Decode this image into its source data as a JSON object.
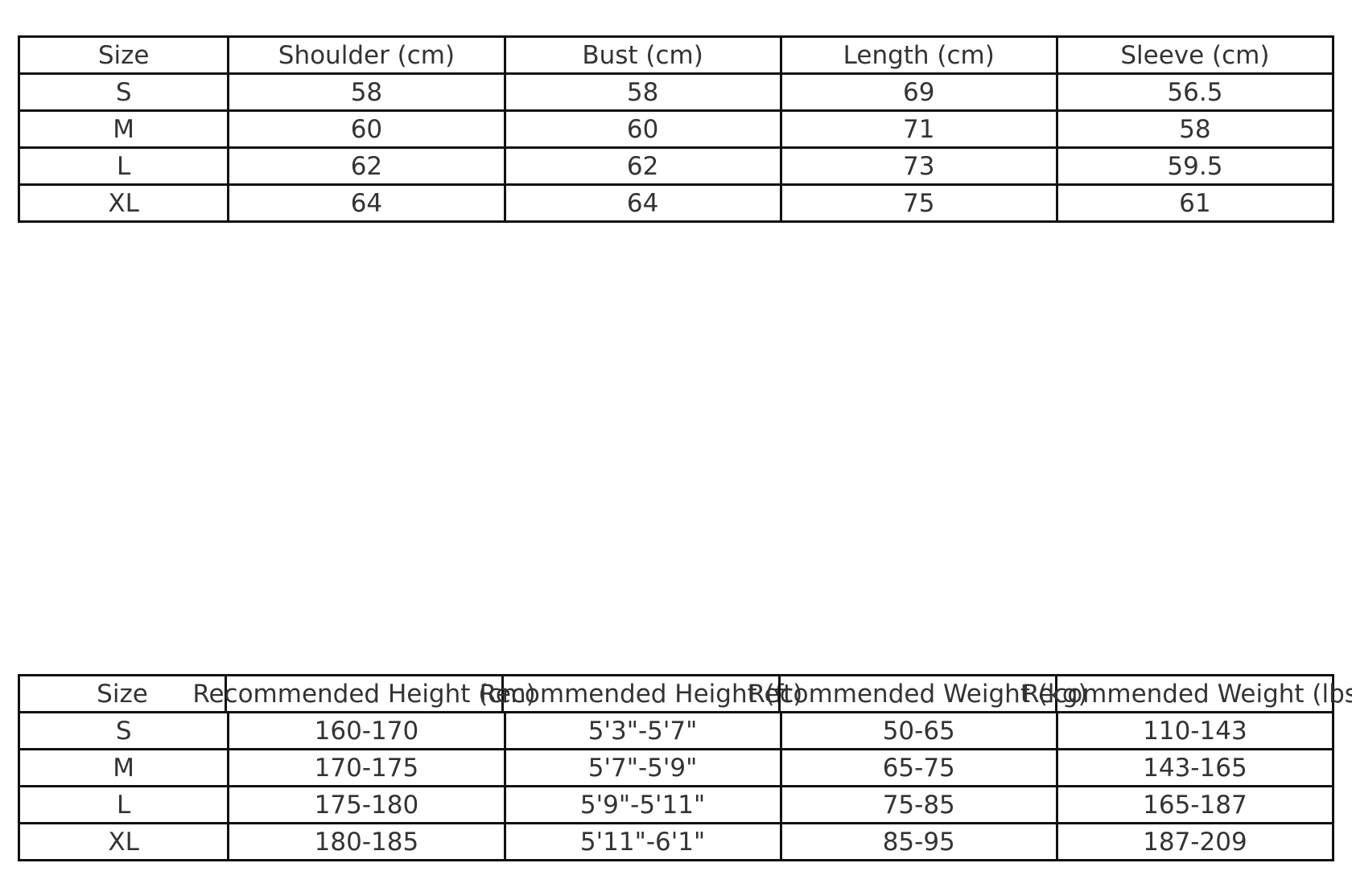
{
  "measurements_table": {
    "headers": [
      "Size",
      "Shoulder (cm)",
      "Bust (cm)",
      "Length (cm)",
      "Sleeve (cm)"
    ],
    "rows": [
      [
        "S",
        "58",
        "58",
        "69",
        "56.5"
      ],
      [
        "M",
        "60",
        "60",
        "71",
        "58"
      ],
      [
        "L",
        "62",
        "62",
        "73",
        "59.5"
      ],
      [
        "XL",
        "64",
        "64",
        "75",
        "61"
      ]
    ]
  },
  "recommendation_table": {
    "headers": [
      "Size",
      "Recommended Height (cm)",
      "Recommended Height (ft)",
      "Recommended Weight (kg)",
      "Recommended Weight (lbs)"
    ],
    "rows": [
      [
        "S",
        "160-170",
        "5'3\"-5'7\"",
        "50-65",
        "110-143"
      ],
      [
        "M",
        "170-175",
        "5'7\"-5'9\"",
        "65-75",
        "143-165"
      ],
      [
        "L",
        "175-180",
        "5'9\"-5'11\"",
        "75-85",
        "165-187"
      ],
      [
        "XL",
        "180-185",
        "5'11\"-6'1\"",
        "85-95",
        "187-209"
      ]
    ]
  }
}
